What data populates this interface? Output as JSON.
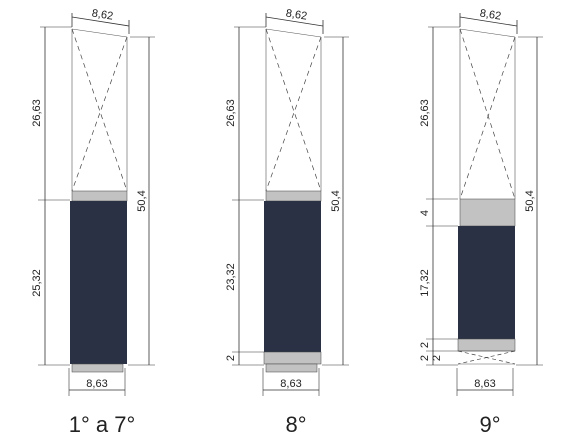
{
  "colors": {
    "dark_fill": "#2b3145",
    "grey_fill": "#c2c2c2",
    "line": "#333333"
  },
  "panels": [
    {
      "id": "floors-1-7",
      "floor_label": "1° a 7°",
      "top_width": "8,62",
      "bottom_width": "8,63",
      "upper_height": "26,63",
      "lower_height": "25,32",
      "total_height": "50,4",
      "extra_dims": []
    },
    {
      "id": "floor-8",
      "floor_label": "8°",
      "top_width": "8,62",
      "bottom_width": "8,63",
      "upper_height": "26,63",
      "lower_height": "23,32",
      "total_height": "50,4",
      "extra_dims": [
        "2"
      ]
    },
    {
      "id": "floor-9",
      "floor_label": "9°",
      "top_width": "8,62",
      "bottom_width": "8,63",
      "upper_height": "26,63",
      "lower_height": "17,32",
      "total_height": "50,4",
      "extra_dims": [
        "4",
        "2",
        "2",
        "2"
      ]
    }
  ]
}
